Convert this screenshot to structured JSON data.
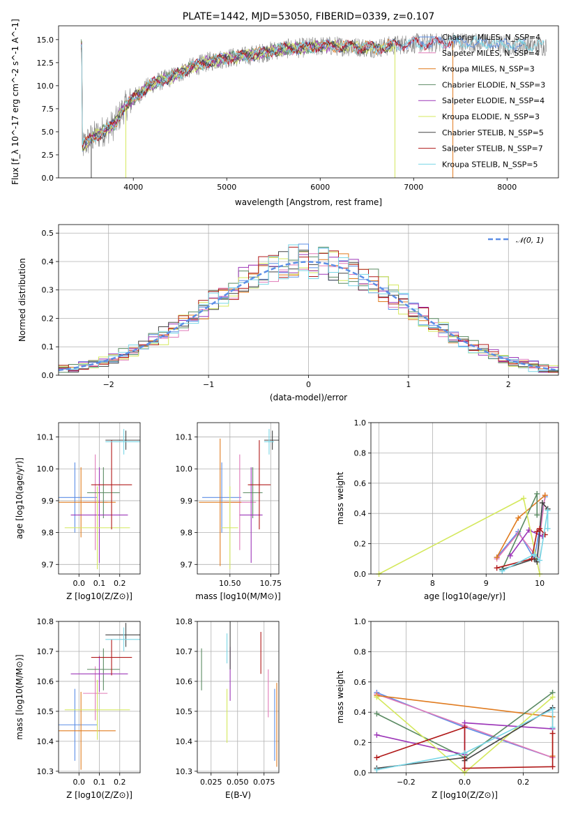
{
  "chart_data": [
    {
      "id": "spectrum",
      "type": "line",
      "title": "PLATE=1442, MJD=53050, FIBERID=0339, z=0.107",
      "xlabel": "wavelength [Angstrom, rest frame]",
      "ylabel": "Flux [f_λ 10^-17 erg cm^-2 s^-1 A^-1]",
      "xlim": [
        3200,
        8550
      ],
      "ylim": [
        0,
        16.5
      ],
      "xticks": [
        4000,
        5000,
        6000,
        7000,
        8000
      ],
      "yticks": [
        0.0,
        2.5,
        5.0,
        7.5,
        10.0,
        12.5,
        15.0
      ],
      "grid": false,
      "legend_location": "right",
      "continuum_points": [
        [
          3450,
          3.4
        ],
        [
          3550,
          4.3
        ],
        [
          3700,
          5.2
        ],
        [
          3800,
          5.8
        ],
        [
          3900,
          7.6
        ],
        [
          4000,
          8.6
        ],
        [
          4200,
          10.2
        ],
        [
          4400,
          10.9
        ],
        [
          4600,
          11.9
        ],
        [
          4800,
          12.6
        ],
        [
          5000,
          13.0
        ],
        [
          5200,
          13.2
        ],
        [
          5400,
          13.6
        ],
        [
          5600,
          14.0
        ],
        [
          5800,
          14.1
        ],
        [
          6000,
          14.3
        ],
        [
          6200,
          14.3
        ],
        [
          6400,
          14.2
        ],
        [
          6600,
          14.1
        ],
        [
          6800,
          14.4
        ],
        [
          7000,
          14.6
        ],
        [
          7200,
          14.6
        ],
        [
          7400,
          14.8
        ],
        [
          7600,
          14.7
        ],
        [
          7800,
          14.6
        ],
        [
          8000,
          14.4
        ],
        [
          8200,
          14.4
        ],
        [
          8400,
          14.3
        ]
      ],
      "series": [
        {
          "name": "Chabrier MILES, N_SSP=4",
          "color": "#5b8ee6"
        },
        {
          "name": "Salpeter MILES, N_SSP=4",
          "color": "#e07ab8"
        },
        {
          "name": "Kroupa MILES, N_SSP=3",
          "color": "#e07b1f"
        },
        {
          "name": "Chabrier ELODIE, N_SSP=3",
          "color": "#5a8a62"
        },
        {
          "name": "Salpeter ELODIE, N_SSP=4",
          "color": "#9c35b8"
        },
        {
          "name": "Kroupa ELODIE, N_SSP=3",
          "color": "#d4e85c"
        },
        {
          "name": "Chabrier STELIB, N_SSP=5",
          "color": "#444444"
        },
        {
          "name": "Salpeter STELIB, N_SSP=7",
          "color": "#b01818"
        },
        {
          "name": "Kroupa STELIB, N_SSP=5",
          "color": "#78d6e6"
        }
      ],
      "data_series": {
        "color": "#808080"
      }
    },
    {
      "id": "residuals",
      "type": "histogram",
      "xlabel": "(data-model)/error",
      "ylabel": "Normed distribution",
      "xlim": [
        -2.5,
        2.5
      ],
      "ylim": [
        0,
        0.53
      ],
      "xticks": [
        -2,
        -1,
        0,
        1,
        2
      ],
      "yticks": [
        0.0,
        0.1,
        0.2,
        0.3,
        0.4,
        0.5
      ],
      "grid": true,
      "bin_width": 0.1,
      "reference": {
        "label": "𝒩(0, 1)",
        "color": "#5b8ee6",
        "style": "dashed"
      },
      "legend_location": "top-right",
      "peak_values": [
        0.51,
        0.47,
        0.46,
        0.46,
        0.45
      ]
    },
    {
      "id": "age-vs-Z",
      "type": "errorbar",
      "xlabel": "Z [log10(Z/Z⊙)]",
      "ylabel": "age [log10(age/yr)]",
      "xlim": [
        -0.1,
        0.3
      ],
      "ylim": [
        9.67,
        10.145
      ],
      "xticks": [
        0.0,
        0.1,
        0.2
      ],
      "yticks": [
        9.7,
        9.8,
        9.9,
        10.0,
        10.1
      ],
      "grid": true,
      "points": [
        {
          "model": "Chabrier MILES",
          "x": -0.02,
          "xerr": 0.11,
          "y": 9.91,
          "yerr": 0.11
        },
        {
          "model": "Salpeter MILES",
          "x": 0.08,
          "xerr": 0.06,
          "y": 9.895,
          "yerr": 0.15
        },
        {
          "model": "Kroupa MILES",
          "x": 0.01,
          "xerr": 0.17,
          "y": 9.895,
          "yerr": 0.11
        },
        {
          "model": "Chabrier ELODIE",
          "x": 0.12,
          "xerr": 0.08,
          "y": 9.925,
          "yerr": 0.08
        },
        {
          "model": "Salpeter ELODIE",
          "x": 0.1,
          "xerr": 0.14,
          "y": 9.855,
          "yerr": 0.15
        },
        {
          "model": "Kroupa ELODIE",
          "x": 0.09,
          "xerr": 0.16,
          "y": 9.815,
          "yerr": 0.13
        },
        {
          "model": "Chabrier STELIB",
          "x": 0.23,
          "xerr": 0.1,
          "y": 10.09,
          "yerr": 0.03
        },
        {
          "model": "Salpeter STELIB",
          "x": 0.16,
          "xerr": 0.1,
          "y": 9.95,
          "yerr": 0.14
        },
        {
          "model": "Kroupa STELIB",
          "x": 0.22,
          "xerr": 0.09,
          "y": 10.085,
          "yerr": 0.04
        }
      ]
    },
    {
      "id": "age-vs-mass",
      "type": "errorbar",
      "xlabel": "mass [log10(M/M⊙)]",
      "ylabel": "",
      "xlim": [
        10.3,
        10.8
      ],
      "ylim": [
        9.67,
        10.145
      ],
      "xticks": [
        10.5,
        10.75
      ],
      "xtick_labels": [
        "10.50",
        "10.75"
      ],
      "yticks": [
        9.7,
        9.8,
        9.9,
        10.0,
        10.1
      ],
      "grid": true,
      "points": [
        {
          "model": "Chabrier MILES",
          "x": 10.45,
          "xerr": 0.12,
          "y": 9.91,
          "yerr": 0.11
        },
        {
          "model": "Salpeter MILES",
          "x": 10.56,
          "xerr": 0.1,
          "y": 9.895,
          "yerr": 0.15
        },
        {
          "model": "Kroupa MILES",
          "x": 10.44,
          "xerr": 0.13,
          "y": 9.895,
          "yerr": 0.2
        },
        {
          "model": "Chabrier ELODIE",
          "x": 10.64,
          "xerr": 0.06,
          "y": 9.925,
          "yerr": 0.08
        },
        {
          "model": "Salpeter ELODIE",
          "x": 10.63,
          "xerr": 0.07,
          "y": 9.855,
          "yerr": 0.15
        },
        {
          "model": "Kroupa ELODIE",
          "x": 10.5,
          "xerr": 0.05,
          "y": 9.815,
          "yerr": 0.13
        },
        {
          "model": "Chabrier STELIB",
          "x": 10.76,
          "xerr": 0.05,
          "y": 10.09,
          "yerr": 0.03
        },
        {
          "model": "Salpeter STELIB",
          "x": 10.68,
          "xerr": 0.07,
          "y": 9.95,
          "yerr": 0.14
        },
        {
          "model": "Kroupa STELIB",
          "x": 10.74,
          "xerr": 0.03,
          "y": 10.085,
          "yerr": 0.04
        }
      ]
    },
    {
      "id": "mass-weight-vs-age",
      "type": "line",
      "xlabel": "age [log10(age/yr)]",
      "ylabel": "mass weight",
      "xlim": [
        6.85,
        10.35
      ],
      "ylim": [
        0,
        1.0
      ],
      "xticks": [
        7,
        8,
        9,
        10
      ],
      "yticks": [
        0.0,
        0.2,
        0.4,
        0.6,
        0.8,
        1.0
      ],
      "grid": true,
      "series": [
        {
          "name": "Chabrier MILES",
          "x": [
            9.2,
            9.6,
            9.9,
            10.1
          ],
          "y": [
            0.11,
            0.28,
            0.1,
            0.51
          ]
        },
        {
          "name": "Salpeter MILES",
          "x": [
            9.2,
            9.6,
            9.95,
            10.1
          ],
          "y": [
            0.1,
            0.27,
            0.11,
            0.52
          ]
        },
        {
          "name": "Kroupa MILES",
          "x": [
            9.2,
            9.6,
            10.1
          ],
          "y": [
            0.11,
            0.37,
            0.52
          ]
        },
        {
          "name": "Chabrier ELODIE",
          "x": [
            9.3,
            9.95,
            9.95
          ],
          "y": [
            0.03,
            0.53,
            0.39
          ]
        },
        {
          "name": "Salpeter ELODIE",
          "x": [
            9.45,
            9.8,
            10.05
          ],
          "y": [
            0.12,
            0.29,
            0.25
          ]
        },
        {
          "name": "Kroupa ELODIE",
          "x": [
            7.0,
            9.7,
            10.0
          ],
          "y": [
            0.0,
            0.5,
            0.0
          ]
        },
        {
          "name": "Chabrier STELIB",
          "x": [
            9.3,
            9.9,
            9.95,
            10.05,
            10.15
          ],
          "y": [
            0.03,
            0.1,
            0.08,
            0.47,
            0.43
          ]
        },
        {
          "name": "Salpeter STELIB",
          "x": [
            9.2,
            9.85,
            9.95,
            10.0,
            10.1
          ],
          "y": [
            0.04,
            0.1,
            0.28,
            0.3,
            0.26
          ]
        },
        {
          "name": "Kroupa STELIB",
          "x": [
            9.3,
            9.9,
            10.0,
            10.15,
            10.15
          ],
          "y": [
            0.02,
            0.13,
            0.09,
            0.42,
            0.3
          ]
        }
      ]
    },
    {
      "id": "mass-vs-Z",
      "type": "errorbar",
      "xlabel": "Z [log10(Z/Z⊙)]",
      "ylabel": "mass [log10(M/M⊙)]",
      "xlim": [
        -0.1,
        0.3
      ],
      "ylim": [
        10.295,
        10.8
      ],
      "xticks": [
        0.0,
        0.1,
        0.2
      ],
      "yticks": [
        10.3,
        10.4,
        10.5,
        10.6,
        10.7,
        10.8
      ],
      "grid": true,
      "points": [
        {
          "model": "Chabrier MILES",
          "x": -0.02,
          "xerr": 0.11,
          "y": 10.455,
          "yerr": 0.12
        },
        {
          "model": "Salpeter MILES",
          "x": 0.08,
          "xerr": 0.06,
          "y": 10.56,
          "yerr": 0.09
        },
        {
          "model": "Kroupa MILES",
          "x": 0.01,
          "xerr": 0.17,
          "y": 10.435,
          "yerr": 0.13
        },
        {
          "model": "Chabrier ELODIE",
          "x": 0.12,
          "xerr": 0.08,
          "y": 10.64,
          "yerr": 0.07
        },
        {
          "model": "Salpeter ELODIE",
          "x": 0.1,
          "xerr": 0.14,
          "y": 10.625,
          "yerr": 0.06
        },
        {
          "model": "Kroupa ELODIE",
          "x": 0.09,
          "xerr": 0.16,
          "y": 10.505,
          "yerr": 0.1
        },
        {
          "model": "Chabrier STELIB",
          "x": 0.23,
          "xerr": 0.1,
          "y": 10.755,
          "yerr": 0.04
        },
        {
          "model": "Salpeter STELIB",
          "x": 0.16,
          "xerr": 0.1,
          "y": 10.68,
          "yerr": 0.06
        },
        {
          "model": "Kroupa STELIB",
          "x": 0.22,
          "xerr": 0.09,
          "y": 10.74,
          "yerr": 0.04
        }
      ]
    },
    {
      "id": "mass-vs-ebv",
      "type": "errorbar",
      "xlabel": "E(B-V)",
      "ylabel": "",
      "xlim": [
        0.012,
        0.089
      ],
      "ylim": [
        10.295,
        10.8
      ],
      "xticks": [
        0.025,
        0.05,
        0.075
      ],
      "xtick_labels": [
        "0.025",
        "0.050",
        "0.075"
      ],
      "yticks": [
        10.3,
        10.4,
        10.5,
        10.6,
        10.7,
        10.8
      ],
      "grid": true,
      "points": [
        {
          "model": "Chabrier MILES",
          "x": 0.085,
          "y": 10.455,
          "yerr": 0.12
        },
        {
          "model": "Salpeter MILES",
          "x": 0.079,
          "y": 10.56,
          "yerr": 0.08
        },
        {
          "model": "Kroupa MILES",
          "x": 0.087,
          "y": 10.455,
          "yerr": 0.14
        },
        {
          "model": "Chabrier ELODIE",
          "x": 0.016,
          "y": 10.64,
          "yerr": 0.07
        },
        {
          "model": "Salpeter ELODIE",
          "x": 0.043,
          "y": 10.625,
          "yerr": 0.09
        },
        {
          "model": "Kroupa ELODIE",
          "x": 0.04,
          "y": 10.485,
          "yerr": 0.09
        },
        {
          "model": "Chabrier STELIB",
          "x": 0.043,
          "y": 10.72,
          "yerr": 0.08
        },
        {
          "model": "Salpeter STELIB",
          "x": 0.072,
          "y": 10.695,
          "yerr": 0.07
        },
        {
          "model": "Kroupa STELIB",
          "x": 0.04,
          "y": 10.71,
          "yerr": 0.05
        }
      ]
    },
    {
      "id": "mass-weight-vs-Z",
      "type": "line",
      "xlabel": "Z [log10(Z/Z⊙)]",
      "ylabel": "mass weight",
      "xlim": [
        -0.32,
        0.32
      ],
      "ylim": [
        0,
        1.0
      ],
      "xticks": [
        -0.2,
        0.0,
        0.2
      ],
      "yticks": [
        0.0,
        0.2,
        0.4,
        0.6,
        0.8,
        1.0
      ],
      "grid": true,
      "series": [
        {
          "name": "Chabrier MILES",
          "x": [
            -0.3,
            0.0,
            0.3
          ],
          "y": [
            0.53,
            0.3,
            0.1
          ]
        },
        {
          "name": "Salpeter MILES",
          "x": [
            -0.3,
            0.0,
            0.3
          ],
          "y": [
            0.52,
            0.31,
            0.1
          ]
        },
        {
          "name": "Kroupa MILES",
          "x": [
            -0.3,
            0.3,
            0.3
          ],
          "y": [
            0.51,
            0.37,
            0.11
          ]
        },
        {
          "name": "Chabrier ELODIE",
          "x": [
            -0.3,
            0.0,
            0.3
          ],
          "y": [
            0.39,
            0.1,
            0.53
          ]
        },
        {
          "name": "Salpeter ELODIE",
          "x": [
            -0.3,
            0.0,
            0.0,
            0.3
          ],
          "y": [
            0.25,
            0.12,
            0.33,
            0.29
          ]
        },
        {
          "name": "Kroupa ELODIE",
          "x": [
            -0.3,
            0.0,
            0.3
          ],
          "y": [
            0.5,
            0.0,
            0.5
          ]
        },
        {
          "name": "Chabrier STELIB",
          "x": [
            -0.3,
            0.0,
            0.0,
            0.3
          ],
          "y": [
            0.03,
            0.1,
            0.08,
            0.43
          ]
        },
        {
          "name": "Salpeter STELIB",
          "x": [
            -0.3,
            0.0,
            0.0,
            0.3,
            0.3
          ],
          "y": [
            0.1,
            0.3,
            0.03,
            0.04,
            0.26
          ]
        },
        {
          "name": "Kroupa STELIB",
          "x": [
            -0.3,
            0.0,
            0.3,
            0.3
          ],
          "y": [
            0.02,
            0.13,
            0.42,
            0.3
          ]
        }
      ]
    }
  ]
}
